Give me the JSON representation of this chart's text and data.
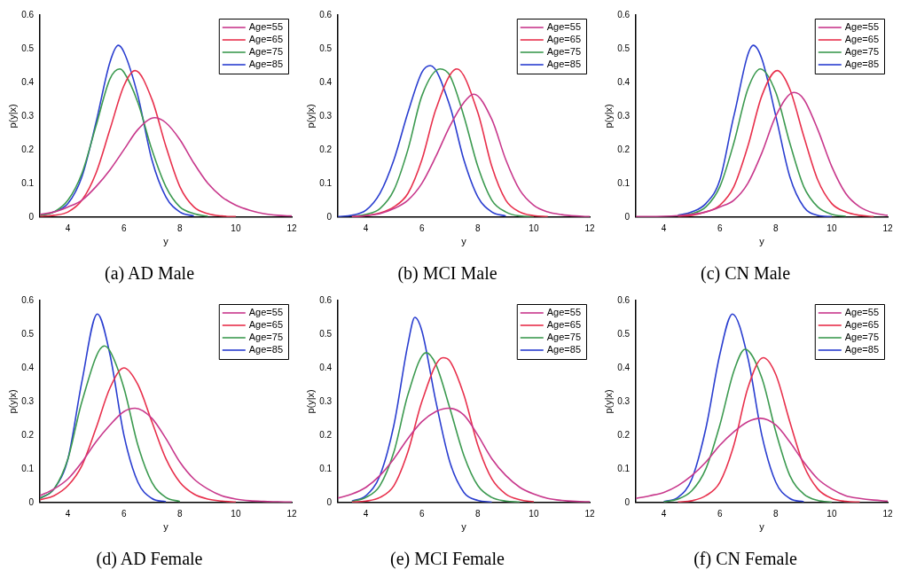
{
  "chart_data": [
    {
      "type": "line",
      "title": "(a) AD Male",
      "xlabel": "y",
      "ylabel": "p(y|x)",
      "xlim": [
        3,
        12
      ],
      "xticks": [
        4,
        6,
        8,
        10,
        12
      ],
      "ylim": [
        0,
        0.6
      ],
      "yticks": [
        0,
        0.1,
        0.2,
        0.3,
        0.4,
        0.5,
        0.6
      ],
      "grid": false,
      "legend": "top right",
      "marker": "none",
      "line_style": "solid",
      "series": [
        {
          "name": "Age=55",
          "color": "#c8388c",
          "x": [
            3,
            3.5,
            4,
            4.5,
            5,
            5.5,
            6,
            6.5,
            7.1,
            7.5,
            8,
            8.5,
            9,
            9.5,
            10,
            10.5,
            11,
            11.5,
            12
          ],
          "values": [
            0.008,
            0.015,
            0.03,
            0.05,
            0.09,
            0.14,
            0.2,
            0.26,
            0.295,
            0.28,
            0.23,
            0.16,
            0.1,
            0.06,
            0.035,
            0.02,
            0.01,
            0.005,
            0.003
          ]
        },
        {
          "name": "Age=65",
          "color": "#e8304c",
          "x": [
            3,
            3.5,
            4,
            4.5,
            5,
            5.5,
            6,
            6.4,
            7,
            7.5,
            8,
            8.5,
            9,
            9.5,
            10
          ],
          "values": [
            0.002,
            0.005,
            0.015,
            0.05,
            0.13,
            0.26,
            0.39,
            0.435,
            0.35,
            0.21,
            0.09,
            0.03,
            0.01,
            0.003,
            0.001
          ]
        },
        {
          "name": "Age=75",
          "color": "#3c9a50",
          "x": [
            3,
            3.5,
            4,
            4.5,
            5,
            5.5,
            5.85,
            6,
            6.5,
            7,
            7.5,
            8,
            8.5,
            9
          ],
          "values": [
            0.005,
            0.015,
            0.05,
            0.13,
            0.27,
            0.41,
            0.44,
            0.43,
            0.34,
            0.2,
            0.09,
            0.03,
            0.01,
            0.002
          ]
        },
        {
          "name": "Age=85",
          "color": "#2a3ed0",
          "x": [
            3,
            3.5,
            4,
            4.5,
            5,
            5.5,
            5.8,
            6,
            6.5,
            7,
            7.5,
            8,
            8.5
          ],
          "values": [
            0.005,
            0.015,
            0.04,
            0.12,
            0.28,
            0.46,
            0.51,
            0.49,
            0.36,
            0.17,
            0.06,
            0.015,
            0.003
          ]
        }
      ]
    },
    {
      "type": "line",
      "title": "(b) MCI Male",
      "xlabel": "y",
      "ylabel": "p(y|x)",
      "xlim": [
        3,
        12
      ],
      "xticks": [
        4,
        6,
        8,
        10,
        12
      ],
      "ylim": [
        0,
        0.6
      ],
      "yticks": [
        0,
        0.1,
        0.2,
        0.3,
        0.4,
        0.5,
        0.6
      ],
      "grid": false,
      "legend": "top right",
      "marker": "none",
      "line_style": "solid",
      "series": [
        {
          "name": "Age=55",
          "color": "#c8388c",
          "x": [
            3.5,
            4,
            4.5,
            5,
            5.5,
            6,
            6.5,
            7,
            7.5,
            7.85,
            8.5,
            9,
            9.5,
            10,
            10.5,
            11,
            11.5,
            12
          ],
          "values": [
            0.001,
            0.004,
            0.01,
            0.025,
            0.05,
            0.1,
            0.18,
            0.27,
            0.34,
            0.365,
            0.29,
            0.17,
            0.08,
            0.035,
            0.015,
            0.007,
            0.003,
            0.001
          ]
        },
        {
          "name": "Age=65",
          "color": "#e8304c",
          "x": [
            3.5,
            4,
            4.5,
            5,
            5.5,
            6,
            6.5,
            7.25,
            8,
            8.5,
            9,
            9.5,
            10,
            10.5
          ],
          "values": [
            0.001,
            0.004,
            0.012,
            0.03,
            0.07,
            0.17,
            0.32,
            0.44,
            0.31,
            0.15,
            0.05,
            0.015,
            0.004,
            0.001
          ]
        },
        {
          "name": "Age=75",
          "color": "#3c9a50",
          "x": [
            3.5,
            4,
            4.5,
            5,
            5.5,
            6,
            6.65,
            7,
            7.5,
            8,
            8.5,
            9,
            9.5,
            10
          ],
          "values": [
            0.002,
            0.008,
            0.025,
            0.08,
            0.2,
            0.36,
            0.44,
            0.42,
            0.3,
            0.15,
            0.05,
            0.015,
            0.003,
            0.001
          ]
        },
        {
          "name": "Age=85",
          "color": "#2a3ed0",
          "x": [
            3,
            3.5,
            4,
            4.5,
            5,
            5.5,
            6,
            6.3,
            7,
            7.5,
            8,
            8.5,
            9
          ],
          "values": [
            0.001,
            0.005,
            0.02,
            0.07,
            0.17,
            0.31,
            0.43,
            0.45,
            0.33,
            0.17,
            0.06,
            0.015,
            0.003
          ]
        }
      ]
    },
    {
      "type": "line",
      "title": "(c) CN Male",
      "xlabel": "y",
      "ylabel": "p(y|x)",
      "xlim": [
        3,
        12
      ],
      "xticks": [
        4,
        6,
        8,
        10,
        12
      ],
      "ylim": [
        0,
        0.6
      ],
      "yticks": [
        0,
        0.1,
        0.2,
        0.3,
        0.4,
        0.5,
        0.6
      ],
      "grid": false,
      "legend": "top right",
      "marker": "none",
      "line_style": "solid",
      "series": [
        {
          "name": "Age=55",
          "color": "#c8388c",
          "x": [
            3,
            4,
            4.5,
            5,
            5.5,
            6,
            6.5,
            7,
            7.5,
            8,
            8.65,
            9,
            9.5,
            10,
            10.5,
            11,
            11.5,
            12
          ],
          "values": [
            0.001,
            0.002,
            0.004,
            0.008,
            0.015,
            0.03,
            0.05,
            0.1,
            0.19,
            0.3,
            0.37,
            0.35,
            0.26,
            0.15,
            0.07,
            0.03,
            0.012,
            0.005
          ]
        },
        {
          "name": "Age=65",
          "color": "#e8304c",
          "x": [
            4.5,
            5,
            5.5,
            6,
            6.5,
            7,
            7.5,
            8.05,
            8.5,
            9,
            9.5,
            10,
            10.5,
            11,
            11.5
          ],
          "values": [
            0.002,
            0.005,
            0.015,
            0.035,
            0.09,
            0.21,
            0.36,
            0.435,
            0.38,
            0.24,
            0.11,
            0.04,
            0.015,
            0.005,
            0.001
          ]
        },
        {
          "name": "Age=75",
          "color": "#3c9a50",
          "x": [
            4.5,
            5,
            5.5,
            6,
            6.5,
            7,
            7.45,
            8,
            8.5,
            9,
            9.5,
            10,
            10.5
          ],
          "values": [
            0.004,
            0.01,
            0.03,
            0.09,
            0.22,
            0.38,
            0.44,
            0.37,
            0.22,
            0.09,
            0.03,
            0.008,
            0.002
          ]
        },
        {
          "name": "Age=85",
          "color": "#2a3ed0",
          "x": [
            4.5,
            5,
            5.5,
            6,
            6.5,
            7.2,
            7.5,
            8,
            8.5,
            9,
            9.5,
            10
          ],
          "values": [
            0.005,
            0.015,
            0.04,
            0.11,
            0.3,
            0.51,
            0.47,
            0.3,
            0.12,
            0.03,
            0.005,
            0.001
          ]
        }
      ]
    },
    {
      "type": "line",
      "title": "(d) AD Female",
      "xlabel": "y",
      "ylabel": "p(y|x)",
      "xlim": [
        3,
        12
      ],
      "xticks": [
        4,
        6,
        8,
        10,
        12
      ],
      "ylim": [
        0,
        0.6
      ],
      "yticks": [
        0,
        0.1,
        0.2,
        0.3,
        0.4,
        0.5,
        0.6
      ],
      "grid": false,
      "legend": "top right",
      "marker": "none",
      "line_style": "solid",
      "series": [
        {
          "name": "Age=55",
          "color": "#c8388c",
          "x": [
            3,
            3.5,
            4,
            4.5,
            5,
            5.5,
            6,
            6.4,
            7,
            7.5,
            8,
            8.5,
            9,
            9.5,
            10,
            10.5,
            11,
            11.5,
            12
          ],
          "values": [
            0.02,
            0.04,
            0.07,
            0.12,
            0.18,
            0.23,
            0.27,
            0.28,
            0.25,
            0.19,
            0.12,
            0.07,
            0.04,
            0.02,
            0.01,
            0.005,
            0.003,
            0.002,
            0.001
          ]
        },
        {
          "name": "Age=65",
          "color": "#e8304c",
          "x": [
            3,
            3.5,
            4,
            4.5,
            5,
            5.5,
            6,
            6.5,
            7,
            7.5,
            8,
            8.5,
            9,
            9.5,
            10
          ],
          "values": [
            0.008,
            0.02,
            0.05,
            0.11,
            0.22,
            0.34,
            0.4,
            0.35,
            0.24,
            0.13,
            0.06,
            0.025,
            0.01,
            0.004,
            0.001
          ]
        },
        {
          "name": "Age=75",
          "color": "#3c9a50",
          "x": [
            3,
            3.5,
            4,
            4.5,
            5.3,
            5.5,
            6,
            6.5,
            7,
            7.5,
            8
          ],
          "values": [
            0.012,
            0.04,
            0.13,
            0.3,
            0.465,
            0.45,
            0.34,
            0.17,
            0.06,
            0.015,
            0.003
          ]
        },
        {
          "name": "Age=85",
          "color": "#2a3ed0",
          "x": [
            3,
            3.5,
            4,
            4.5,
            5.05,
            5.5,
            6,
            6.5,
            7,
            7.5
          ],
          "values": [
            0.012,
            0.04,
            0.13,
            0.36,
            0.56,
            0.44,
            0.2,
            0.06,
            0.012,
            0.002
          ]
        }
      ]
    },
    {
      "type": "line",
      "title": "(e) MCI Female",
      "xlabel": "y",
      "ylabel": "p(y|x)",
      "xlim": [
        3,
        12
      ],
      "xticks": [
        4,
        6,
        8,
        10,
        12
      ],
      "ylim": [
        0,
        0.6
      ],
      "yticks": [
        0,
        0.1,
        0.2,
        0.3,
        0.4,
        0.5,
        0.6
      ],
      "grid": false,
      "legend": "top right",
      "marker": "none",
      "line_style": "solid",
      "series": [
        {
          "name": "Age=55",
          "color": "#c8388c",
          "x": [
            3,
            3.5,
            4,
            4.5,
            5,
            5.5,
            6,
            6.5,
            6.95,
            7.5,
            8,
            8.5,
            9,
            9.5,
            10,
            10.5,
            11,
            11.5,
            12
          ],
          "values": [
            0.013,
            0.025,
            0.045,
            0.08,
            0.13,
            0.19,
            0.24,
            0.27,
            0.28,
            0.26,
            0.2,
            0.13,
            0.08,
            0.045,
            0.025,
            0.012,
            0.006,
            0.003,
            0.002
          ]
        },
        {
          "name": "Age=65",
          "color": "#e8304c",
          "x": [
            3.5,
            4,
            4.5,
            5,
            5.5,
            6,
            6.75,
            7,
            7.5,
            8,
            8.5,
            9,
            9.5,
            10
          ],
          "values": [
            0.001,
            0.004,
            0.015,
            0.05,
            0.15,
            0.3,
            0.43,
            0.42,
            0.32,
            0.17,
            0.07,
            0.025,
            0.008,
            0.002
          ]
        },
        {
          "name": "Age=75",
          "color": "#3c9a50",
          "x": [
            3.5,
            4,
            4.5,
            5,
            5.5,
            6.15,
            6.5,
            7,
            7.5,
            8,
            8.5,
            9,
            9.5
          ],
          "values": [
            0.003,
            0.015,
            0.05,
            0.15,
            0.32,
            0.445,
            0.41,
            0.28,
            0.14,
            0.05,
            0.015,
            0.004,
            0.001
          ]
        },
        {
          "name": "Age=85",
          "color": "#2a3ed0",
          "x": [
            3.5,
            4,
            4.5,
            5,
            5.5,
            5.75,
            6,
            6.5,
            7,
            7.5,
            8,
            8.5
          ],
          "values": [
            0.004,
            0.02,
            0.08,
            0.23,
            0.47,
            0.55,
            0.51,
            0.3,
            0.12,
            0.03,
            0.006,
            0.001
          ]
        }
      ]
    },
    {
      "type": "line",
      "title": "(f) CN Female",
      "xlabel": "y",
      "ylabel": "p(y|x)",
      "xlim": [
        3,
        12
      ],
      "xticks": [
        4,
        6,
        8,
        10,
        12
      ],
      "ylim": [
        0,
        0.6
      ],
      "yticks": [
        0,
        0.1,
        0.2,
        0.3,
        0.4,
        0.5,
        0.6
      ],
      "grid": false,
      "legend": "top right",
      "marker": "none",
      "line_style": "solid",
      "series": [
        {
          "name": "Age=55",
          "color": "#c8388c",
          "x": [
            3,
            3.5,
            4,
            4.5,
            5,
            5.5,
            6,
            6.5,
            7,
            7.45,
            8,
            8.5,
            9,
            9.5,
            10,
            10.5,
            11,
            11.5,
            12
          ],
          "values": [
            0.012,
            0.02,
            0.03,
            0.05,
            0.08,
            0.12,
            0.17,
            0.21,
            0.24,
            0.25,
            0.23,
            0.18,
            0.12,
            0.07,
            0.04,
            0.02,
            0.012,
            0.007,
            0.004
          ]
        },
        {
          "name": "Age=65",
          "color": "#e8304c",
          "x": [
            4.5,
            5,
            5.5,
            6,
            6.5,
            7,
            7.55,
            8,
            8.5,
            9,
            9.5,
            10,
            10.5,
            11
          ],
          "values": [
            0.001,
            0.005,
            0.02,
            0.06,
            0.17,
            0.34,
            0.43,
            0.38,
            0.24,
            0.11,
            0.04,
            0.012,
            0.003,
            0.001
          ]
        },
        {
          "name": "Age=75",
          "color": "#3c9a50",
          "x": [
            4,
            4.5,
            5,
            5.5,
            6,
            6.5,
            6.9,
            7.5,
            8,
            8.5,
            9,
            9.5,
            10
          ],
          "values": [
            0.002,
            0.01,
            0.035,
            0.1,
            0.23,
            0.39,
            0.455,
            0.37,
            0.21,
            0.08,
            0.025,
            0.006,
            0.001
          ]
        },
        {
          "name": "Age=85",
          "color": "#2a3ed0",
          "x": [
            4,
            4.5,
            5,
            5.5,
            6,
            6.45,
            7,
            7.5,
            8,
            8.5,
            9
          ],
          "values": [
            0.003,
            0.015,
            0.07,
            0.22,
            0.44,
            0.56,
            0.43,
            0.2,
            0.06,
            0.012,
            0.002
          ]
        }
      ]
    }
  ]
}
